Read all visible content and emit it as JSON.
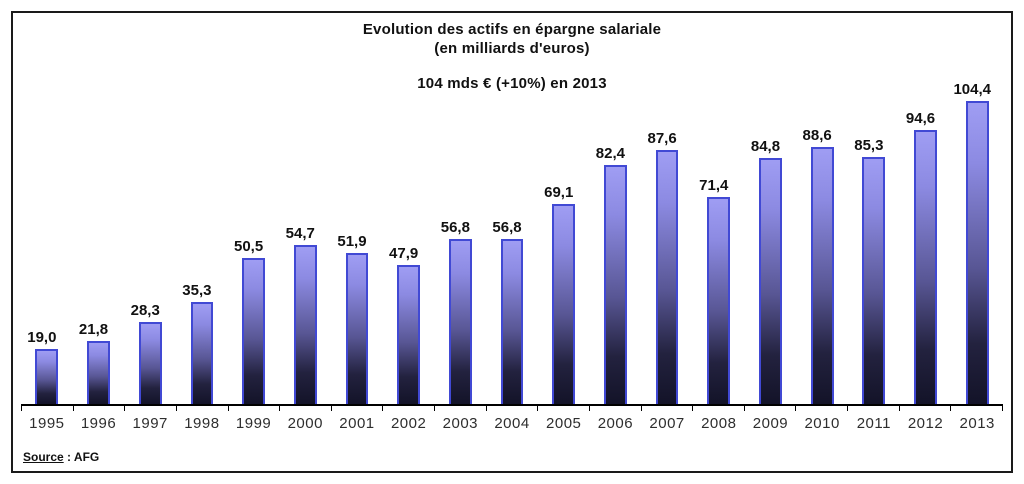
{
  "chart": {
    "title_line1": "Evolution des actifs en épargne salariale",
    "title_line2": "(en milliards d'euros)",
    "subtitle": "104 mds € (+10%) en 2013",
    "source_label": "Source",
    "source_rest": " : AFG"
  },
  "chart_data": {
    "type": "bar",
    "title": "Evolution des actifs en épargne salariale (en milliards d'euros)",
    "subtitle": "104 mds € (+10%) en 2013",
    "categories": [
      "1995",
      "1996",
      "1997",
      "1998",
      "1999",
      "2000",
      "2001",
      "2002",
      "2003",
      "2004",
      "2005",
      "2006",
      "2007",
      "2008",
      "2009",
      "2010",
      "2011",
      "2012",
      "2013"
    ],
    "values": [
      19.0,
      21.8,
      28.3,
      35.3,
      50.5,
      54.7,
      51.9,
      47.9,
      56.8,
      56.8,
      69.1,
      82.4,
      87.6,
      71.4,
      84.8,
      88.6,
      85.3,
      94.6,
      104.4
    ],
    "value_labels": [
      "19,0",
      "21,8",
      "28,3",
      "35,3",
      "50,5",
      "54,7",
      "51,9",
      "47,9",
      "56,8",
      "56,8",
      "69,1",
      "82,4",
      "87,6",
      "71,4",
      "84,8",
      "88,6",
      "85,3",
      "94,6",
      "104,4"
    ],
    "xlabel": "",
    "ylabel": "",
    "ylim": [
      0,
      110
    ],
    "grid": false,
    "legend": false,
    "source": "Source : AFG",
    "decimal_separator": ",",
    "colors": {
      "bar_gradient_top": "#9f9df3",
      "bar_gradient_bottom": "#131328",
      "bar_border": "#4149d4",
      "axis": "#000000",
      "value_text": "#111111",
      "year_text": "#2e2e2e",
      "frame_border": "#1a1a1a",
      "background": "#ffffff"
    }
  }
}
